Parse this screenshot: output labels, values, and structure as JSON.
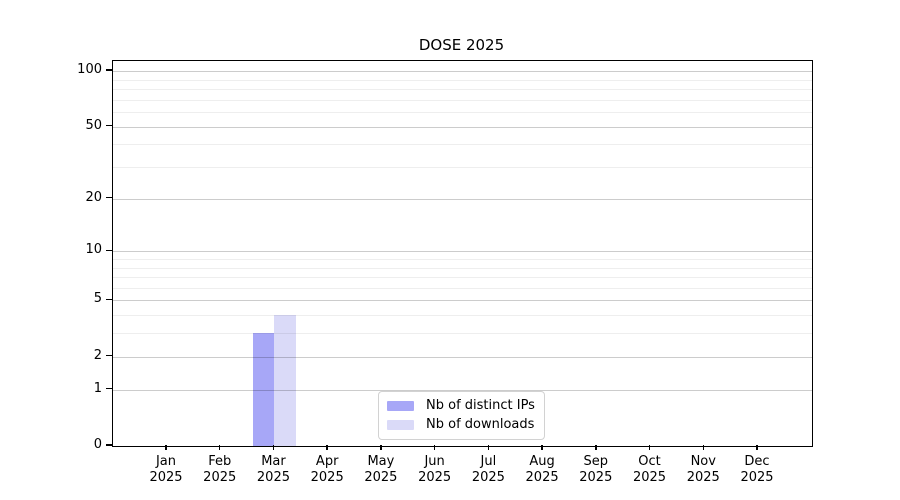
{
  "chart_data": {
    "type": "bar",
    "title": "DOSE 2025",
    "categories": [
      "Jan",
      "Feb",
      "Mar",
      "Apr",
      "May",
      "Jun",
      "Jul",
      "Aug",
      "Sep",
      "Oct",
      "Nov",
      "Dec"
    ],
    "year_label": "2025",
    "series": [
      {
        "name": "Nb of distinct IPs",
        "color": "#a7a7f7",
        "values": [
          0,
          0,
          3,
          0,
          0,
          0,
          0,
          0,
          0,
          0,
          0,
          0
        ]
      },
      {
        "name": "Nb of downloads",
        "color": "#dadaf8",
        "values": [
          0,
          0,
          4,
          0,
          0,
          0,
          0,
          0,
          0,
          0,
          0,
          0
        ]
      }
    ],
    "y_axis": {
      "scale": "log1p",
      "major_ticks": [
        0,
        1,
        2,
        5,
        10,
        20,
        50,
        100
      ],
      "minor_gridlines": [
        3,
        4,
        6,
        7,
        8,
        9,
        30,
        40,
        60,
        70,
        80,
        90
      ],
      "axis_max": 113.5,
      "ylim": [
        0,
        113.5
      ]
    },
    "legend": {
      "position": "bottom-center",
      "entries": [
        "Nb of distinct IPs",
        "Nb of downloads"
      ]
    },
    "grid": "on"
  }
}
